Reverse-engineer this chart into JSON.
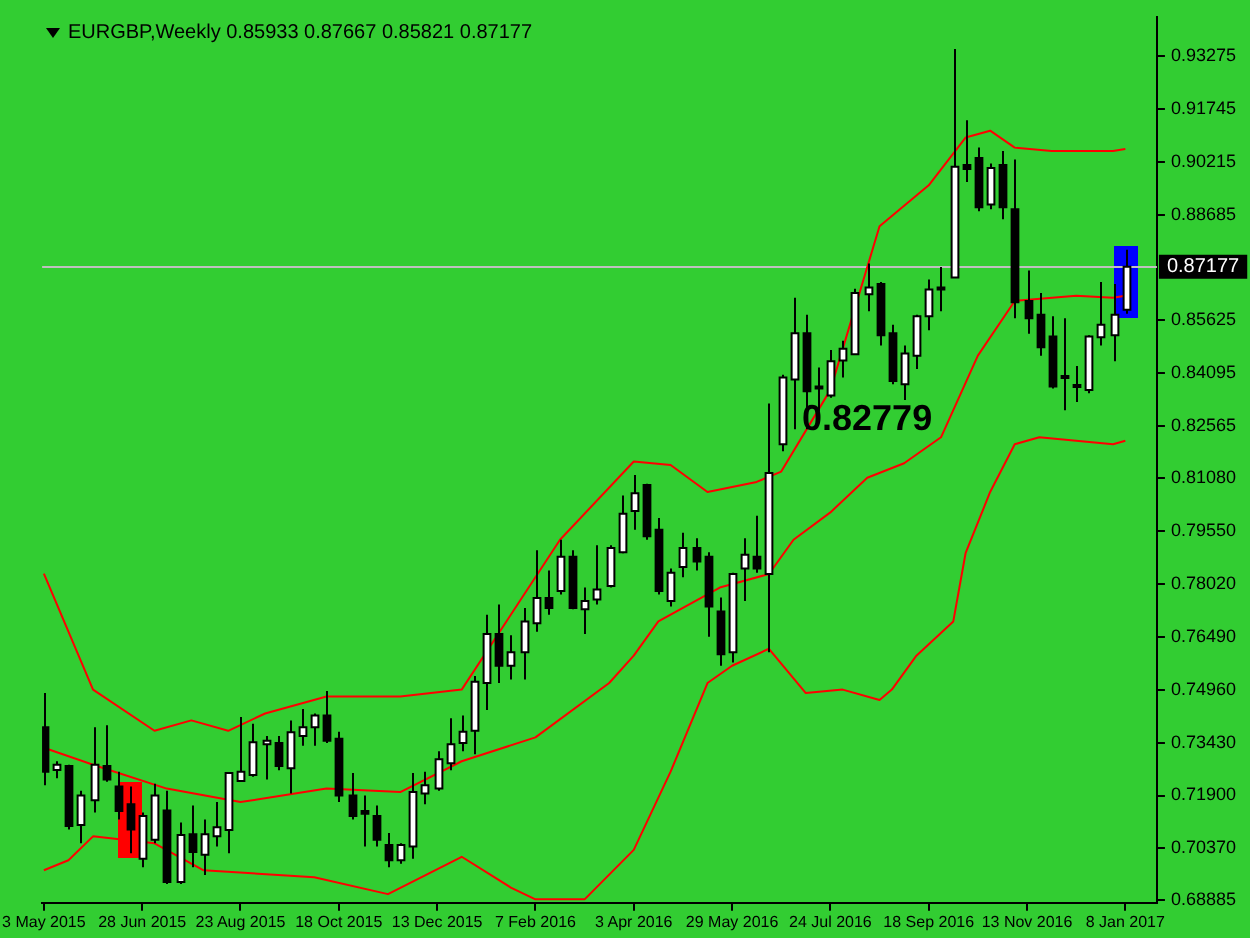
{
  "chart_data": {
    "type": "candlestick",
    "title": "EURGBP,Weekly 0.85933 0.87667 0.85821 0.87177",
    "x": [
      "2015-05-03",
      "2015-05-10",
      "2015-05-17",
      "2015-05-24",
      "2015-05-31",
      "2015-06-07",
      "2015-06-14",
      "2015-06-21",
      "2015-06-28",
      "2015-07-05",
      "2015-07-12",
      "2015-07-19",
      "2015-07-26",
      "2015-08-02",
      "2015-08-09",
      "2015-08-16",
      "2015-08-23",
      "2015-08-30",
      "2015-09-06",
      "2015-09-13",
      "2015-09-20",
      "2015-09-27",
      "2015-10-04",
      "2015-10-11",
      "2015-10-18",
      "2015-10-25",
      "2015-11-01",
      "2015-11-08",
      "2015-11-15",
      "2015-11-22",
      "2015-11-29",
      "2015-12-06",
      "2015-12-13",
      "2015-12-20",
      "2015-12-27",
      "2016-01-03",
      "2016-01-10",
      "2016-01-17",
      "2016-01-24",
      "2016-01-31",
      "2016-02-07",
      "2016-02-14",
      "2016-02-21",
      "2016-02-28",
      "2016-03-06",
      "2016-03-13",
      "2016-03-20",
      "2016-03-27",
      "2016-04-03",
      "2016-04-10",
      "2016-04-17",
      "2016-04-24",
      "2016-05-01",
      "2016-05-08",
      "2016-05-15",
      "2016-05-22",
      "2016-05-29",
      "2016-06-05",
      "2016-06-12",
      "2016-06-19",
      "2016-06-26",
      "2016-07-03",
      "2016-07-10",
      "2016-07-17",
      "2016-07-24",
      "2016-07-31",
      "2016-08-07",
      "2016-08-14",
      "2016-08-21",
      "2016-08-28",
      "2016-09-04",
      "2016-09-11",
      "2016-09-18",
      "2016-09-25",
      "2016-10-02",
      "2016-10-09",
      "2016-10-16",
      "2016-10-23",
      "2016-10-30",
      "2016-11-06",
      "2016-11-13",
      "2016-11-20",
      "2016-11-27",
      "2016-12-04",
      "2016-12-11",
      "2016-12-18",
      "2016-12-25",
      "2017-01-01",
      "2017-01-08"
    ],
    "ohlc": [
      [
        0.7387,
        0.7486,
        0.722,
        0.7259
      ],
      [
        0.7264,
        0.7289,
        0.724,
        0.7279
      ],
      [
        0.7275,
        0.7279,
        0.7092,
        0.7102
      ],
      [
        0.7105,
        0.7204,
        0.7052,
        0.719
      ],
      [
        0.7176,
        0.7387,
        0.7141,
        0.7279
      ],
      [
        0.7275,
        0.7393,
        0.723,
        0.7236
      ],
      [
        0.7216,
        0.7259,
        0.7121,
        0.7145
      ],
      [
        0.7165,
        0.7216,
        0.7023,
        0.7092
      ],
      [
        0.7007,
        0.7141,
        0.6983,
        0.7131
      ],
      [
        0.7062,
        0.7224,
        0.7052,
        0.719
      ],
      [
        0.7147,
        0.7204,
        0.6934,
        0.694
      ],
      [
        0.694,
        0.7112,
        0.6934,
        0.7076
      ],
      [
        0.7078,
        0.7161,
        0.6983,
        0.7027
      ],
      [
        0.7019,
        0.7121,
        0.696,
        0.7078
      ],
      [
        0.7072,
        0.7171,
        0.7043,
        0.7098
      ],
      [
        0.709,
        0.7255,
        0.7023,
        0.7255
      ],
      [
        0.7232,
        0.7417,
        0.723,
        0.7259
      ],
      [
        0.7249,
        0.7397,
        0.7244,
        0.7344
      ],
      [
        0.7338,
        0.7362,
        0.7236,
        0.7348
      ],
      [
        0.7342,
        0.7362,
        0.7263,
        0.7275
      ],
      [
        0.7269,
        0.7407,
        0.7196,
        0.7373
      ],
      [
        0.7362,
        0.744,
        0.7334,
        0.7387
      ],
      [
        0.7387,
        0.7427,
        0.7334,
        0.7421
      ],
      [
        0.7421,
        0.7492,
        0.7342,
        0.7348
      ],
      [
        0.7354,
        0.7374,
        0.7171,
        0.719
      ],
      [
        0.719,
        0.7255,
        0.7121,
        0.7131
      ],
      [
        0.7145,
        0.719,
        0.7043,
        0.7137
      ],
      [
        0.7131,
        0.7161,
        0.7043,
        0.7062
      ],
      [
        0.7047,
        0.7082,
        0.6983,
        0.7003
      ],
      [
        0.7003,
        0.7052,
        0.6993,
        0.7047
      ],
      [
        0.7043,
        0.7255,
        0.7007,
        0.72
      ],
      [
        0.7196,
        0.7259,
        0.7165,
        0.722
      ],
      [
        0.721,
        0.7318,
        0.7204,
        0.7295
      ],
      [
        0.7283,
        0.7413,
        0.7263,
        0.7338
      ],
      [
        0.7342,
        0.7421,
        0.7318,
        0.7374
      ],
      [
        0.7377,
        0.7535,
        0.7309,
        0.7519
      ],
      [
        0.7515,
        0.7712,
        0.7437,
        0.7657
      ],
      [
        0.7657,
        0.7742,
        0.7515,
        0.7565
      ],
      [
        0.7565,
        0.7653,
        0.7525,
        0.7604
      ],
      [
        0.7604,
        0.7732,
        0.7525,
        0.7693
      ],
      [
        0.7688,
        0.7899,
        0.7663,
        0.7761
      ],
      [
        0.7761,
        0.784,
        0.7712,
        0.7732
      ],
      [
        0.7781,
        0.7929,
        0.7771,
        0.788
      ],
      [
        0.788,
        0.7899,
        0.7728,
        0.7732
      ],
      [
        0.7728,
        0.7791,
        0.7657,
        0.7752
      ],
      [
        0.7756,
        0.7913,
        0.7742,
        0.7785
      ],
      [
        0.7795,
        0.7913,
        0.7791,
        0.7905
      ],
      [
        0.7893,
        0.8057,
        0.789,
        0.8004
      ],
      [
        0.8012,
        0.8116,
        0.7958,
        0.8063
      ],
      [
        0.8087,
        0.8091,
        0.7929,
        0.7939
      ],
      [
        0.7958,
        0.7992,
        0.7771,
        0.7781
      ],
      [
        0.7752,
        0.7846,
        0.7736,
        0.7834
      ],
      [
        0.785,
        0.7949,
        0.7821,
        0.7905
      ],
      [
        0.7905,
        0.7933,
        0.784,
        0.7866
      ],
      [
        0.788,
        0.7893,
        0.7649,
        0.7736
      ],
      [
        0.7722,
        0.7762,
        0.7565,
        0.7598
      ],
      [
        0.7604,
        0.7834,
        0.7574,
        0.783
      ],
      [
        0.7846,
        0.7933,
        0.7752,
        0.7886
      ],
      [
        0.788,
        0.7998,
        0.7834,
        0.7846
      ],
      [
        0.783,
        0.8323,
        0.7604,
        0.8122
      ],
      [
        0.8205,
        0.8406,
        0.8185,
        0.8398
      ],
      [
        0.8392,
        0.8628,
        0.8248,
        0.8526
      ],
      [
        0.8526,
        0.8579,
        0.8248,
        0.8358
      ],
      [
        0.8366,
        0.8427,
        0.8299,
        0.8372
      ],
      [
        0.8346,
        0.8477,
        0.8339,
        0.8445
      ],
      [
        0.8447,
        0.8504,
        0.8398,
        0.8481
      ],
      [
        0.8465,
        0.8654,
        0.8465,
        0.8642
      ],
      [
        0.8638,
        0.8727,
        0.8589,
        0.8658
      ],
      [
        0.8668,
        0.8674,
        0.849,
        0.852
      ],
      [
        0.8526,
        0.855,
        0.8378,
        0.8388
      ],
      [
        0.8378,
        0.849,
        0.8333,
        0.8467
      ],
      [
        0.8461,
        0.8579,
        0.8422,
        0.8575
      ],
      [
        0.8575,
        0.8681,
        0.8534,
        0.8652
      ],
      [
        0.8652,
        0.8717,
        0.8589,
        0.8658
      ],
      [
        0.8687,
        0.9347,
        0.8687,
        0.9007
      ],
      [
        0.9012,
        0.9141,
        0.8963,
        0.9
      ],
      [
        0.9032,
        0.9062,
        0.8878,
        0.889
      ],
      [
        0.8898,
        0.9016,
        0.8884,
        0.9003
      ],
      [
        0.9012,
        0.9052,
        0.8855,
        0.889
      ],
      [
        0.8884,
        0.9028,
        0.8569,
        0.8615
      ],
      [
        0.8619,
        0.8707,
        0.8524,
        0.8569
      ],
      [
        0.8579,
        0.8642,
        0.8461,
        0.8485
      ],
      [
        0.8516,
        0.8575,
        0.8366,
        0.8372
      ],
      [
        0.8402,
        0.8569,
        0.8303,
        0.8396
      ],
      [
        0.8376,
        0.8431,
        0.8327,
        0.837
      ],
      [
        0.8362,
        0.852,
        0.8352,
        0.8516
      ],
      [
        0.8514,
        0.8674,
        0.849,
        0.855
      ],
      [
        0.852,
        0.8668,
        0.8445,
        0.8579
      ],
      [
        0.85933,
        0.87667,
        0.85821,
        0.87177
      ]
    ],
    "series": [
      {
        "type": "line",
        "color": "#ff0000",
        "x": [
          "2015-05-03",
          "2015-05-31",
          "2015-07-05",
          "2015-07-26",
          "2015-08-16",
          "2015-09-06",
          "2015-10-11",
          "2015-11-22",
          "2015-12-27",
          "2016-02-21",
          "2016-04-03",
          "2016-04-24",
          "2016-05-15",
          "2016-06-12",
          "2016-06-26",
          "2016-07-24",
          "2016-08-21",
          "2016-09-18",
          "2016-10-09",
          "2016-10-23",
          "2016-11-06",
          "2016-11-27",
          "2017-01-01",
          "2017-01-08"
        ],
        "values": [
          0.7831,
          0.7496,
          0.7377,
          0.7407,
          0.7377,
          0.7427,
          0.7476,
          0.7476,
          0.7496,
          0.7929,
          0.8155,
          0.8145,
          0.8067,
          0.8096,
          0.8126,
          0.8362,
          0.8835,
          0.8953,
          0.9091,
          0.9111,
          0.9062,
          0.9052,
          0.9052,
          0.9058
        ]
      },
      {
        "type": "line",
        "color": "#ff0000",
        "x": [
          "2015-05-03",
          "2015-05-31",
          "2015-07-12",
          "2015-08-23",
          "2015-10-11",
          "2015-11-22",
          "2015-12-27",
          "2016-02-07",
          "2016-03-20",
          "2016-04-03",
          "2016-04-17",
          "2016-05-22",
          "2016-06-19",
          "2016-07-03",
          "2016-07-24",
          "2016-08-14",
          "2016-09-04",
          "2016-09-25",
          "2016-10-16",
          "2016-11-06",
          "2016-12-11",
          "2017-01-01",
          "2017-01-08"
        ],
        "values": [
          0.7328,
          0.7279,
          0.721,
          0.7171,
          0.721,
          0.72,
          0.7289,
          0.7358,
          0.7515,
          0.7594,
          0.7693,
          0.7791,
          0.783,
          0.7929,
          0.8008,
          0.8108,
          0.815,
          0.8225,
          0.8461,
          0.8619,
          0.8634,
          0.8628,
          0.8634
        ]
      },
      {
        "type": "line",
        "color": "#ff0000",
        "x": [
          "2015-05-03",
          "2015-05-17",
          "2015-05-31",
          "2015-07-05",
          "2015-08-02",
          "2015-10-04",
          "2015-11-15",
          "2015-12-27",
          "2016-01-24",
          "2016-02-07",
          "2016-03-06",
          "2016-04-03",
          "2016-04-24",
          "2016-05-15",
          "2016-05-29",
          "2016-06-19",
          "2016-07-10",
          "2016-07-31",
          "2016-08-21",
          "2016-08-28",
          "2016-09-11",
          "2016-10-02",
          "2016-10-09",
          "2016-10-23",
          "2016-11-06",
          "2016-11-20",
          "2017-01-01",
          "2017-01-08"
        ],
        "values": [
          0.6974,
          0.7003,
          0.7072,
          0.7052,
          0.6974,
          0.6954,
          0.6905,
          0.7013,
          0.6924,
          0.689,
          0.689,
          0.7033,
          0.7259,
          0.7515,
          0.7565,
          0.7614,
          0.7486,
          0.7496,
          0.7466,
          0.7496,
          0.7594,
          0.7693,
          0.789,
          0.8067,
          0.8205,
          0.8225,
          0.8205,
          0.8215
        ]
      }
    ],
    "xlim": [
      "2015-05-02",
      "2017-01-26"
    ],
    "xticks": [
      {
        "value": "2015-05-03",
        "label": "3 May 2015"
      },
      {
        "value": "2015-06-28",
        "label": "28 Jun 2015"
      },
      {
        "value": "2015-08-23",
        "label": "23 Aug 2015"
      },
      {
        "value": "2015-10-18",
        "label": "18 Oct 2015"
      },
      {
        "value": "2015-12-13",
        "label": "13 Dec 2015"
      },
      {
        "value": "2016-02-07",
        "label": "7 Feb 2016"
      },
      {
        "value": "2016-04-03",
        "label": "3 Apr 2016"
      },
      {
        "value": "2016-05-29",
        "label": "29 May 2016"
      },
      {
        "value": "2016-07-24",
        "label": "24 Jul 2016"
      },
      {
        "value": "2016-09-18",
        "label": "18 Sep 2016"
      },
      {
        "value": "2016-11-13",
        "label": "13 Nov 2016"
      },
      {
        "value": "2017-01-08",
        "label": "8 Jan 2017"
      }
    ],
    "ylim": [
      0.688,
      0.944
    ],
    "yticks": [
      0.93275,
      0.91745,
      0.90215,
      0.88685,
      0.85625,
      0.84095,
      0.82565,
      {
        "value": 0.8108,
        "label": "0.81080"
      },
      {
        "value": 0.7955,
        "label": "0.79550"
      },
      {
        "value": 0.7802,
        "label": "0.78020"
      },
      {
        "value": 0.7649,
        "label": "0.76490"
      },
      {
        "value": 0.7496,
        "label": "0.74960"
      },
      {
        "value": 0.7343,
        "label": "0.73430"
      },
      {
        "value": 0.719,
        "label": "0.71900"
      },
      {
        "value": 0.7037,
        "label": "0.70370"
      },
      0.68885
    ],
    "ref_lines": [
      {
        "axis": "y",
        "value": 0.87177,
        "label": "0.87177",
        "color": "#c0c0c0"
      }
    ],
    "annotations": [
      "0.82779"
    ]
  }
}
